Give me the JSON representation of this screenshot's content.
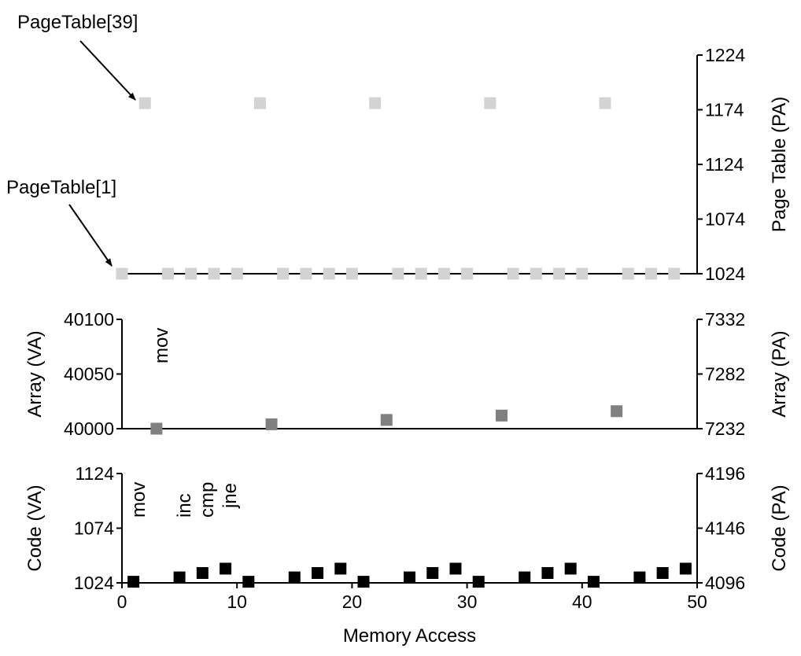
{
  "chart_data": [
    {
      "type": "scatter",
      "panel": "page-table",
      "right_ylabel": "Page Table (PA)",
      "right_yticks": [
        1024,
        1074,
        1124,
        1174,
        1224
      ],
      "ylim": [
        1024,
        1224
      ],
      "xlim": [
        0,
        50
      ],
      "marker_color": "#d3d3d3",
      "series": [
        {
          "x": [
            0,
            2,
            4,
            6,
            8,
            10,
            12,
            14,
            16,
            18,
            20,
            22,
            24,
            26,
            28,
            30,
            32,
            34,
            36,
            38,
            40,
            42,
            44,
            46,
            48
          ],
          "y": [
            1024,
            1180,
            1024,
            1024,
            1024,
            1024,
            1180,
            1024,
            1024,
            1024,
            1024,
            1180,
            1024,
            1024,
            1024,
            1024,
            1180,
            1024,
            1024,
            1024,
            1024,
            1180,
            1024,
            1024,
            1024
          ]
        }
      ],
      "annotations": [
        "PageTable[39]",
        "PageTable[1]"
      ]
    },
    {
      "type": "scatter",
      "panel": "array",
      "left_ylabel": "Array (VA)",
      "right_ylabel": "Array (PA)",
      "left_yticks": [
        40000,
        40050,
        40100
      ],
      "right_yticks": [
        7232,
        7282,
        7332
      ],
      "ylim": [
        40000,
        40100
      ],
      "xlim": [
        0,
        50
      ],
      "marker_color": "#808080",
      "series": [
        {
          "x": [
            3,
            13,
            23,
            33,
            43
          ],
          "y": [
            40000,
            40004,
            40008,
            40012,
            40016
          ]
        }
      ],
      "annotations": [
        "mov"
      ]
    },
    {
      "type": "scatter",
      "panel": "code",
      "left_ylabel": "Code (VA)",
      "right_ylabel": "Code (PA)",
      "left_yticks": [
        1024,
        1074,
        1124
      ],
      "right_yticks": [
        4096,
        4146,
        4196
      ],
      "ylim": [
        1024,
        1124
      ],
      "xlim": [
        0,
        50
      ],
      "xlabel": "Memory Access",
      "xticks": [
        0,
        10,
        20,
        30,
        40,
        50
      ],
      "marker_color": "#000000",
      "series": [
        {
          "x": [
            1,
            5,
            7,
            9,
            11,
            15,
            17,
            19,
            21,
            25,
            27,
            29,
            31,
            35,
            37,
            39,
            41,
            45,
            47,
            49
          ],
          "y": [
            1025,
            1029,
            1033,
            1037,
            1025,
            1029,
            1033,
            1037,
            1025,
            1029,
            1033,
            1037,
            1025,
            1029,
            1033,
            1037,
            1025,
            1029,
            1033,
            1037
          ]
        }
      ],
      "annotations": [
        "mov",
        "inc",
        "cmp",
        "jne"
      ]
    }
  ]
}
